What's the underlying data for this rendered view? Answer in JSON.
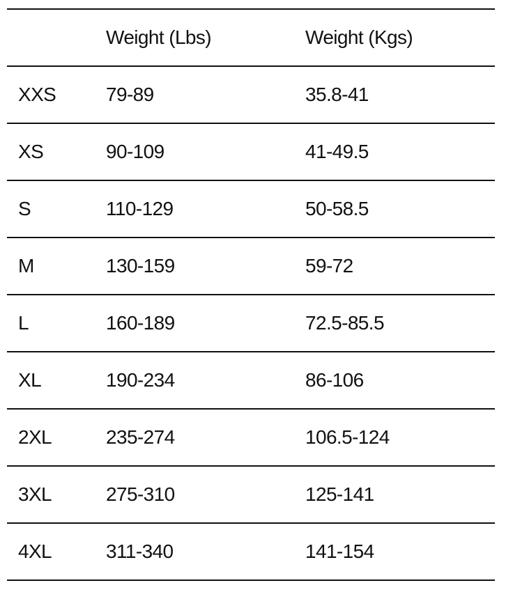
{
  "table": {
    "headers": [
      "",
      "Weight (Lbs)",
      "Weight (Kgs)"
    ],
    "rows": [
      [
        "XXS",
        "79-89",
        "35.8-41"
      ],
      [
        "XS",
        "90-109",
        "41-49.5"
      ],
      [
        "S",
        "110-129",
        "50-58.5"
      ],
      [
        "M",
        "130-159",
        "59-72"
      ],
      [
        "L",
        "160-189",
        "72.5-85.5"
      ],
      [
        "XL",
        "190-234",
        "86-106"
      ],
      [
        "2XL",
        "235-274",
        "106.5-124"
      ],
      [
        "3XL",
        "275-310",
        "125-141"
      ],
      [
        "4XL",
        "311-340",
        "141-154"
      ]
    ]
  }
}
